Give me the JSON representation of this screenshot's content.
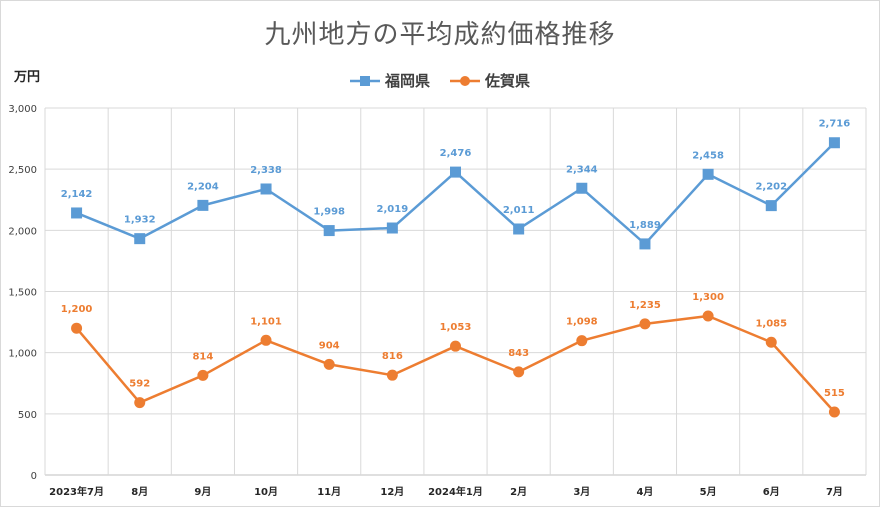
{
  "chart_data": {
    "type": "line",
    "title": "九州地方の平均成約価格推移",
    "ylabel": "万円",
    "xlabel": "",
    "ylim": [
      0,
      3000
    ],
    "yticks": [
      "0",
      "500",
      "1,000",
      "1,500",
      "2,000",
      "2,500",
      "3,000"
    ],
    "ytick_values": [
      0,
      500,
      1000,
      1500,
      2000,
      2500,
      3000
    ],
    "categories": [
      "2023年7月",
      "8月",
      "9月",
      "10月",
      "11月",
      "12月",
      "2024年1月",
      "2月",
      "3月",
      "4月",
      "5月",
      "6月",
      "7月"
    ],
    "legend_position": "top-center",
    "grid": true,
    "series": [
      {
        "name": "福岡県",
        "color": "#5b9bd5",
        "marker": "square",
        "values": [
          2142,
          1932,
          2204,
          2338,
          1998,
          2019,
          2476,
          2011,
          2344,
          1889,
          2458,
          2202,
          2716
        ],
        "labels": [
          "2,142",
          "1,932",
          "2,204",
          "2,338",
          "1,998",
          "2,019",
          "2,476",
          "2,011",
          "2,344",
          "1,889",
          "2,458",
          "2,202",
          "2,716"
        ]
      },
      {
        "name": "佐賀県",
        "color": "#ed7d31",
        "marker": "circle",
        "values": [
          1200,
          592,
          814,
          1101,
          904,
          816,
          1053,
          843,
          1098,
          1235,
          1300,
          1085,
          515
        ],
        "labels": [
          "1,200",
          "592",
          "814",
          "1,101",
          "904",
          "816",
          "1,053",
          "843",
          "1,098",
          "1,235",
          "1,300",
          "1,085",
          "515"
        ]
      }
    ]
  }
}
